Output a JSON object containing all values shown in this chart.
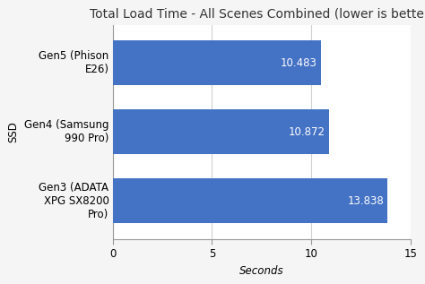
{
  "title": "Total Load Time - All Scenes Combined (lower is better)",
  "categories": [
    "Gen5 (Phison\nE26)",
    "Gen4 (Samsung\n990 Pro)",
    "Gen3 (ADATA\nXPG SX8200\nPro)"
  ],
  "values": [
    10.483,
    10.872,
    13.838
  ],
  "bar_color": "#4472c4",
  "value_labels": [
    "10.483",
    "10.872",
    "13.838"
  ],
  "xlabel": "Seconds",
  "ylabel": "SSD",
  "xlim": [
    0,
    15
  ],
  "xticks": [
    0,
    5,
    10,
    15
  ],
  "background_color": "#f5f5f5",
  "plot_bg_color": "#ffffff",
  "title_fontsize": 10,
  "label_fontsize": 8.5,
  "tick_fontsize": 8.5,
  "value_fontsize": 8.5,
  "bar_height": 0.65
}
